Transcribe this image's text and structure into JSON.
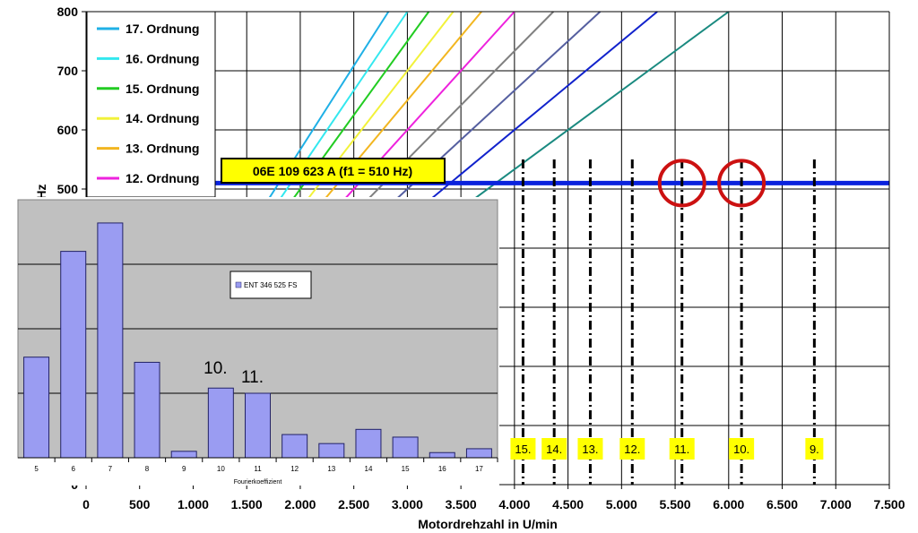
{
  "chart_data": [
    {
      "type": "line",
      "xlabel": "Motordrehzahl in U/min",
      "ylabel": "Hz",
      "xlim": [
        0,
        7500
      ],
      "ylim": [
        0,
        800
      ],
      "x_ticks": [
        0,
        500,
        1000,
        1500,
        2000,
        2500,
        3000,
        3500,
        4000,
        4500,
        5000,
        5500,
        6000,
        6500,
        7000,
        7500
      ],
      "x_tick_labels": [
        "0",
        "500",
        "1.000",
        "1.500",
        "2.000",
        "2.500",
        "3.000",
        "3.500",
        "4.000",
        "4.500",
        "5.000",
        "5.500",
        "6.000",
        "6.500",
        "7.000",
        "7.500"
      ],
      "y_ticks": [
        0,
        500,
        600,
        700,
        800
      ],
      "y_tick_labels": [
        "0",
        "500",
        "600",
        "700",
        "800"
      ],
      "grid": true,
      "legend_position": "top-left",
      "series": [
        {
          "name": "17. Ordnung",
          "order": 17,
          "color": "#1fb0e6"
        },
        {
          "name": "16. Ordnung",
          "order": 16,
          "color": "#33e8ef"
        },
        {
          "name": "15. Ordnung",
          "order": 15,
          "color": "#22cc22"
        },
        {
          "name": "14. Ordnung",
          "order": 14,
          "color": "#f2f23a"
        },
        {
          "name": "13. Ordnung",
          "order": 13,
          "color": "#f2b620"
        },
        {
          "name": "12. Ordnung",
          "order": 12,
          "color": "#ee22dd"
        },
        {
          "order": 11,
          "color": "#808080"
        },
        {
          "order": 10,
          "color": "#555fa0"
        },
        {
          "order": 9,
          "color": "#1122cc"
        },
        {
          "order": 8,
          "color": "#1a8a80"
        }
      ],
      "hline": {
        "y": 510,
        "label": "06E 109 623 A (f1 = 510 Hz)",
        "color": "#0a22dd",
        "label_bg": "#ffff00"
      },
      "vmarkers": [
        {
          "label": "15.",
          "x": 4080
        },
        {
          "label": "14.",
          "x": 4371
        },
        {
          "label": "13.",
          "x": 4708
        },
        {
          "label": "12.",
          "x": 5100
        },
        {
          "label": "11.",
          "x": 5564
        },
        {
          "label": "10.",
          "x": 6120
        },
        {
          "label": "9.",
          "x": 6800
        }
      ],
      "circles": [
        {
          "x": 5564,
          "y": 510
        },
        {
          "x": 6120,
          "y": 510
        }
      ]
    },
    {
      "type": "bar",
      "xlabel": "Fourierkoeffizient",
      "categories": [
        "5",
        "6",
        "7",
        "8",
        "9",
        "10",
        "11",
        "12",
        "13",
        "14",
        "15",
        "16",
        "17"
      ],
      "series": [
        {
          "name": "ENT 346 525 FS",
          "values": [
            0.39,
            0.8,
            0.91,
            0.37,
            0.025,
            0.27,
            0.25,
            0.09,
            0.055,
            0.11,
            0.08,
            0.02,
            0.035
          ]
        }
      ],
      "ylim": [
        0,
        1
      ],
      "grid": true,
      "annotations": [
        "10.",
        "11."
      ],
      "bar_color": "#9a9cf2",
      "background": "#c0c0c0"
    }
  ]
}
